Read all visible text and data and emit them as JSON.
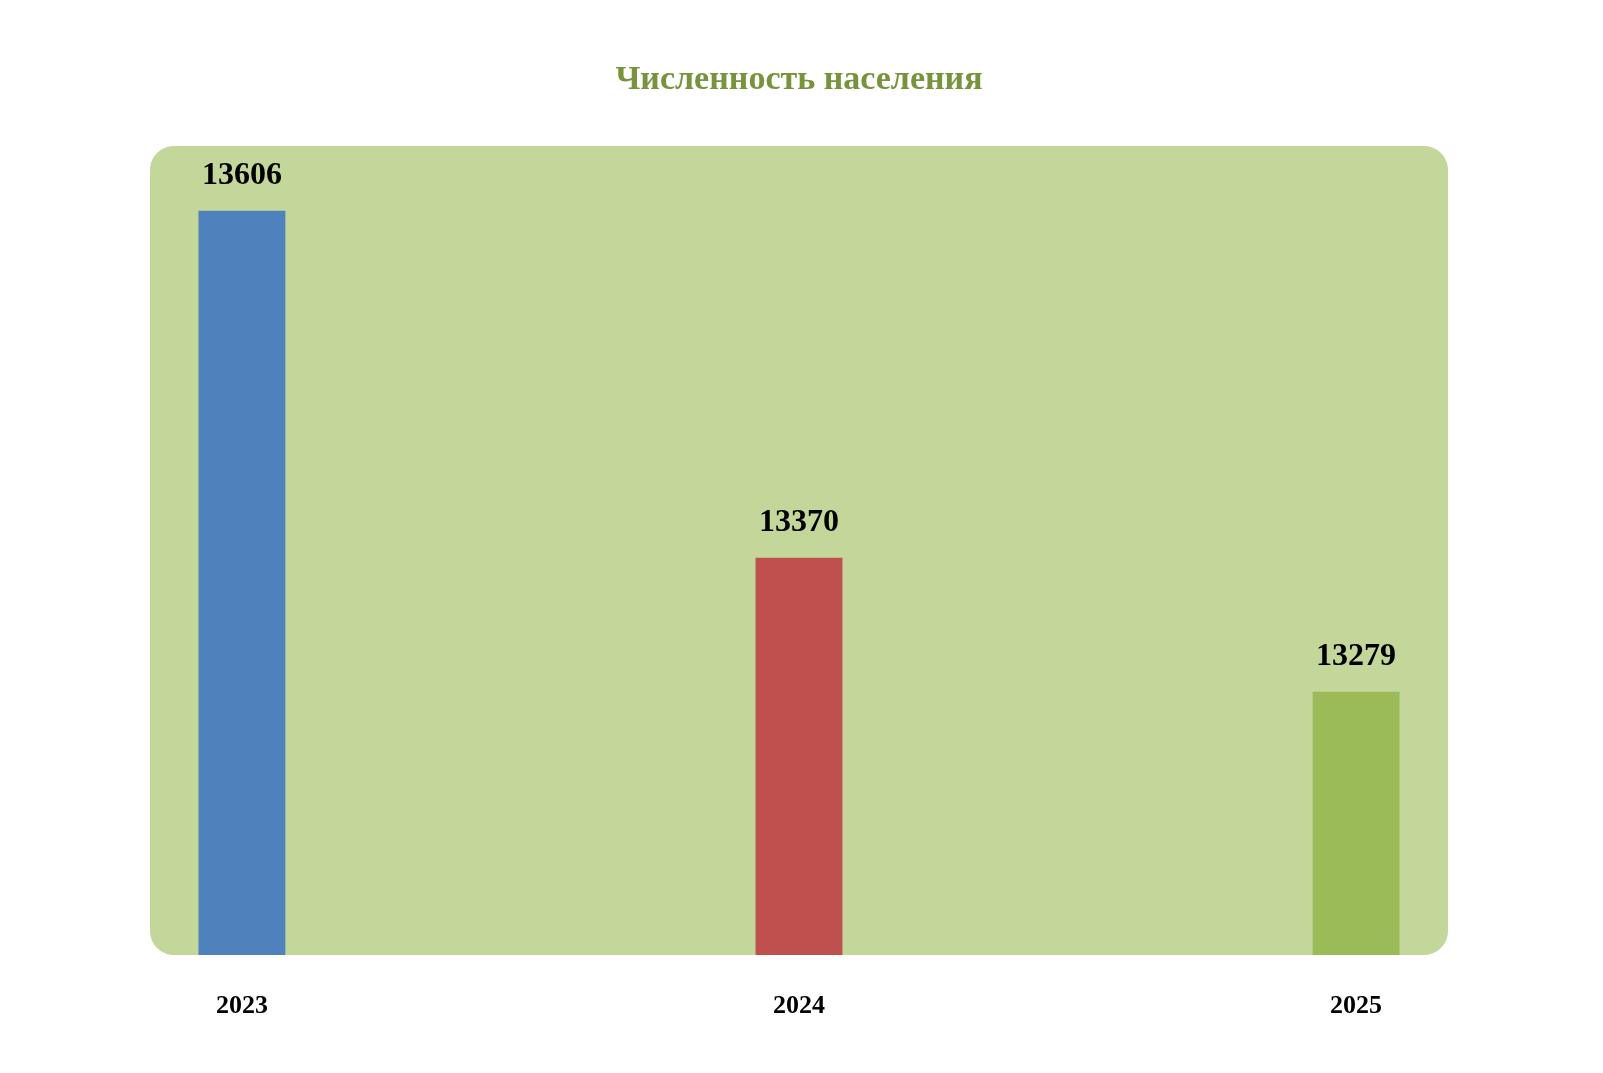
{
  "chart_data": {
    "type": "bar",
    "title": "Численность населения",
    "categories": [
      "2023",
      "2024",
      "2025"
    ],
    "values": [
      13606,
      13370,
      13279
    ],
    "colors": [
      "#4f81bd",
      "#c0504d",
      "#9bbb59"
    ],
    "ylim": [
      13100,
      13650
    ],
    "data_labels": true,
    "tick_labels": "x",
    "grid": false,
    "legend": false
  }
}
